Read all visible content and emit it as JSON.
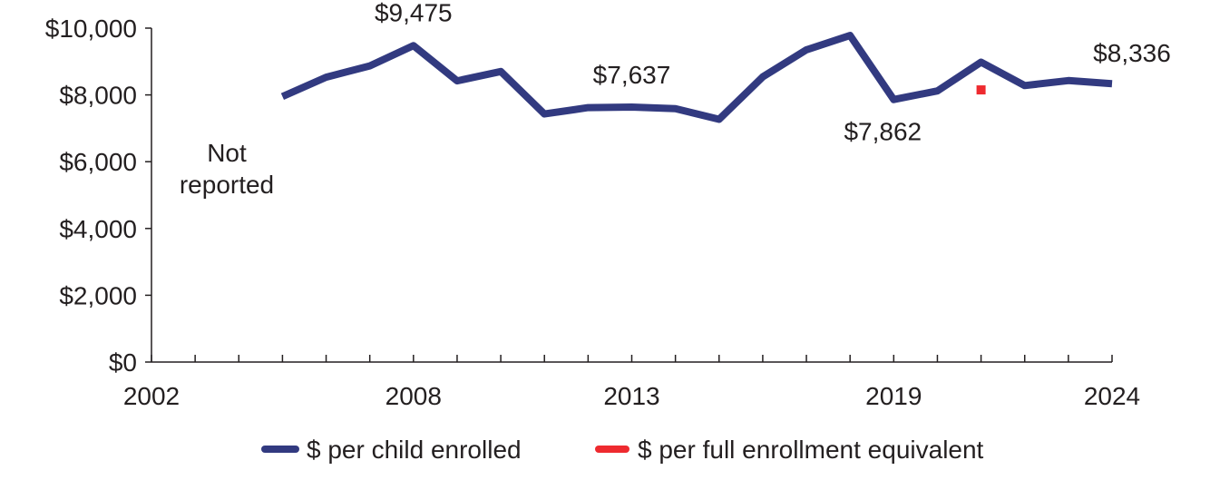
{
  "chart_data": {
    "type": "line",
    "x": [
      2002,
      2003,
      2004,
      2005,
      2006,
      2007,
      2008,
      2009,
      2010,
      2011,
      2012,
      2013,
      2014,
      2015,
      2016,
      2017,
      2018,
      2019,
      2020,
      2021,
      2022,
      2023,
      2024
    ],
    "x_tick_labels": [
      "2002",
      "2008",
      "2013",
      "2019",
      "2024"
    ],
    "ylim": [
      0,
      10000
    ],
    "y_tick_labels": [
      "$0",
      "$2,000",
      "$4,000",
      "$6,000",
      "$8,000",
      "$10,000"
    ],
    "y_ticks": [
      0,
      2000,
      4000,
      6000,
      8000,
      10000
    ],
    "series": [
      {
        "name": "$ per child enrolled",
        "color": "#323a80",
        "values": [
          null,
          null,
          null,
          7950,
          8530,
          8870,
          9475,
          8420,
          8700,
          7430,
          7620,
          7637,
          7590,
          7270,
          8540,
          9350,
          9780,
          7862,
          8120,
          8980,
          8280,
          8430,
          8336
        ]
      },
      {
        "name": "$ per full enrollment equivalent",
        "color": "#ee2a2f",
        "points": [
          {
            "x": 2021,
            "y": 8150
          }
        ]
      }
    ],
    "annotations": [
      {
        "text": "$9,475",
        "x": 2008,
        "y": 9475
      },
      {
        "text": "$7,637",
        "x": 2013,
        "y": 7637
      },
      {
        "text": "$7,862",
        "x": 2019,
        "y": 7862
      },
      {
        "text": "$8,336",
        "x": 2024,
        "y": 8336
      }
    ],
    "not_reported_label": [
      "Not",
      "reported"
    ],
    "grid": false,
    "legend_position": "bottom"
  }
}
